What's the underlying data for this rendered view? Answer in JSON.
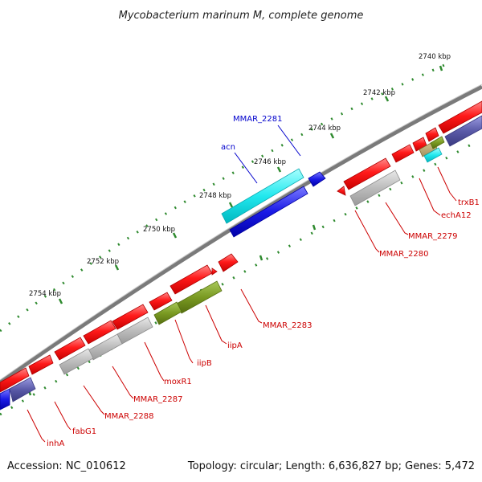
{
  "title": "Mycobacterium marinum M, complete genome",
  "footer": {
    "accession": "Accession: NC_010612",
    "summary": "Topology: circular; Length: 6,636,827 bp; Genes: 5,472"
  },
  "ticks": [
    "2740 kbp",
    "2742 kbp",
    "2744 kbp",
    "2746 kbp",
    "2748 kbp",
    "2750 kbp",
    "2752 kbp",
    "2754 kbp"
  ],
  "labels": {
    "mmar2281": "MMAR_2281",
    "acn": "acn",
    "trxB1": "trxB1",
    "echA12": "echA12",
    "mmar2279": "MMAR_2279",
    "mmar2280": "MMAR_2280",
    "mmar2283": "MMAR_2283",
    "iipA": "iipA",
    "iipB": "iipB",
    "moxR1": "moxR1",
    "mmar2287": "MMAR_2287",
    "mmar2288": "MMAR_2288",
    "fabG1": "fabG1",
    "inhA": "inhA"
  },
  "colors": {
    "cds": "#ff1a1a",
    "rna_gray": "#bcbcbc",
    "blue": "#1a1ae6",
    "cyan": "#22e8ee",
    "olive": "#7a9a22",
    "slate": "#5a5aa8",
    "backbone": "#7a7a7a",
    "ticks": "#2e8a2e",
    "label_red": "#cc0000",
    "label_blue": "#0000cc"
  }
}
